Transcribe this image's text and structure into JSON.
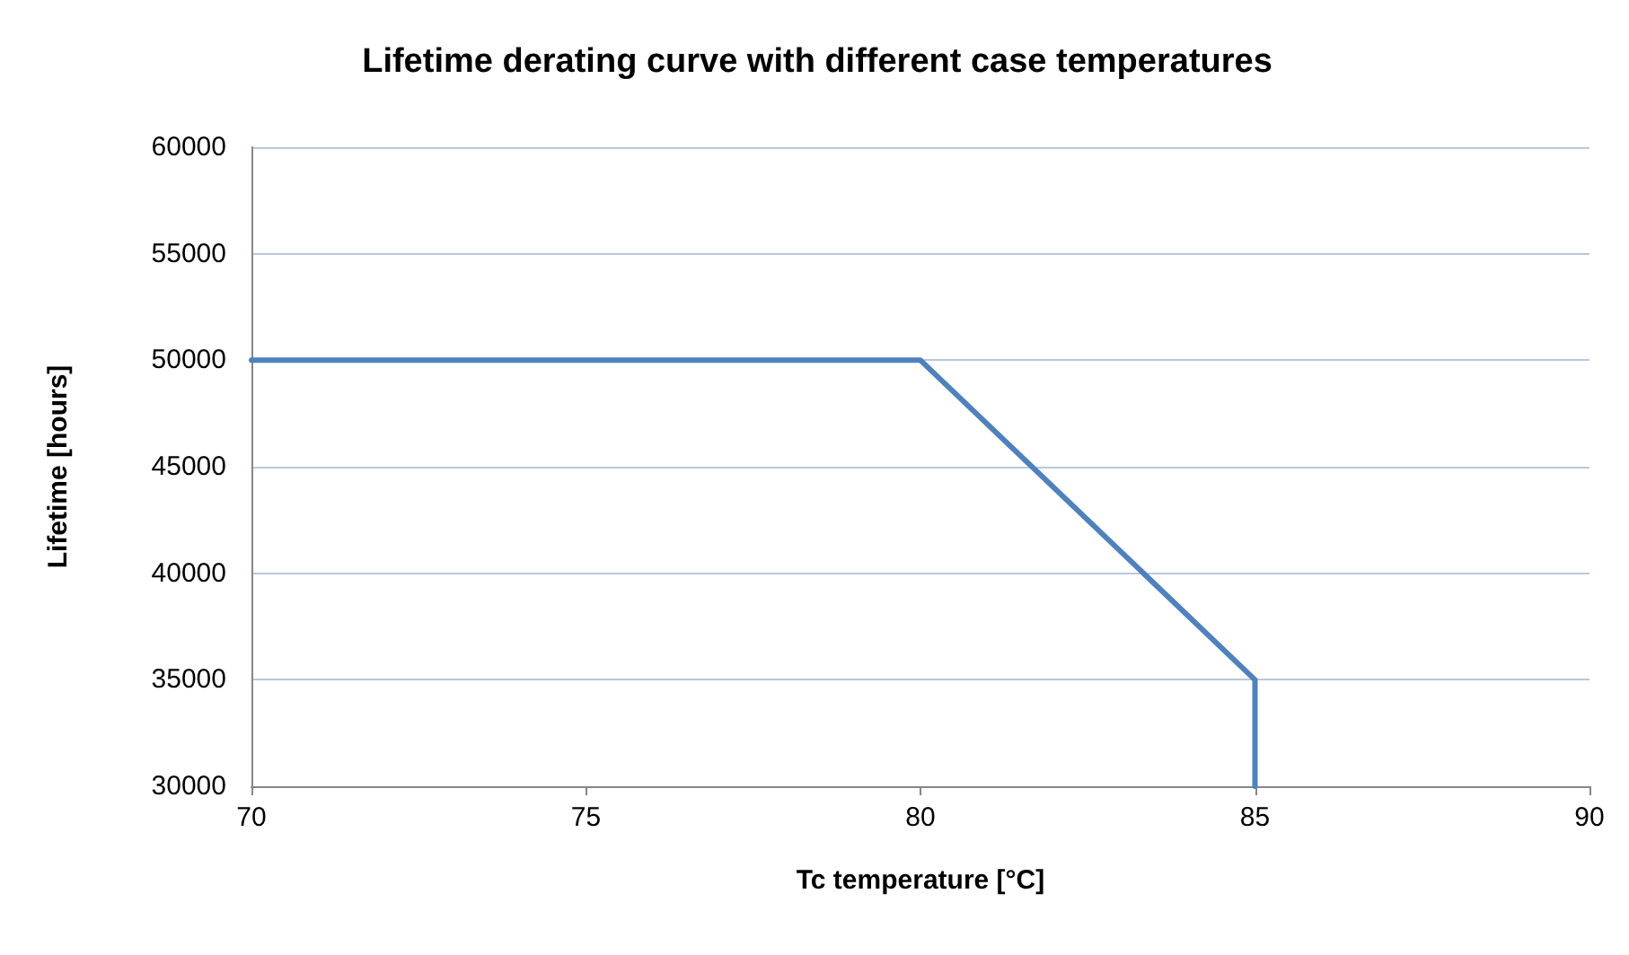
{
  "chart_data": {
    "type": "line",
    "title": "Lifetime derating curve with different case temperatures",
    "xlabel": "Tc temperature [°C]",
    "ylabel": "Lifetime [hours]",
    "x": [
      70,
      80,
      85,
      85
    ],
    "series": [
      {
        "color": "#4f81bd",
        "values": [
          50000,
          50000,
          35000,
          30000
        ]
      }
    ],
    "xlim": [
      70,
      90
    ],
    "xticks": [
      70,
      75,
      80,
      85,
      90
    ],
    "ylim": [
      30000,
      60000
    ],
    "yticks": [
      30000,
      35000,
      40000,
      45000,
      50000,
      55000,
      60000
    ],
    "grid": "y",
    "marker": "none",
    "line_style": "solid"
  }
}
